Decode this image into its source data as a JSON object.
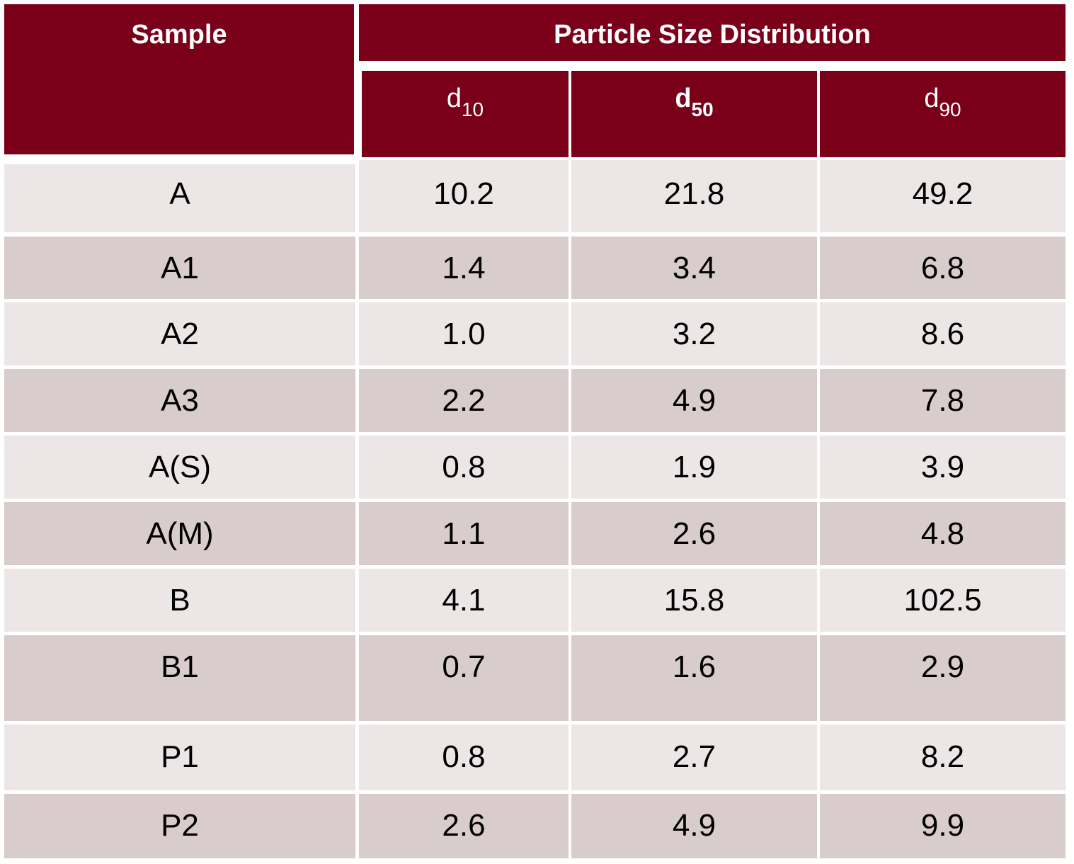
{
  "header": {
    "sample": "Sample",
    "group": "Particle Size Distribution",
    "columns": [
      {
        "main": "d",
        "sub": "10"
      },
      {
        "main": "d",
        "sub": "50"
      },
      {
        "main": "d",
        "sub": "90"
      }
    ]
  },
  "rows": [
    {
      "sample": "A",
      "d10": "10.2",
      "d50": "21.8",
      "d90": "49.2"
    },
    {
      "sample": "A1",
      "d10": "1.4",
      "d50": "3.4",
      "d90": "6.8"
    },
    {
      "sample": "A2",
      "d10": "1.0",
      "d50": "3.2",
      "d90": "8.6"
    },
    {
      "sample": "A3",
      "d10": "2.2",
      "d50": "4.9",
      "d90": "7.8"
    },
    {
      "sample": "A(S)",
      "d10": "0.8",
      "d50": "1.9",
      "d90": "3.9"
    },
    {
      "sample": "A(M)",
      "d10": "1.1",
      "d50": "2.6",
      "d90": "4.8"
    },
    {
      "sample": "B",
      "d10": "4.1",
      "d50": "15.8",
      "d90": "102.5"
    },
    {
      "sample": "B1",
      "d10": "0.7",
      "d50": "1.6",
      "d90": "2.9"
    },
    {
      "sample": "P1",
      "d10": "0.8",
      "d50": "2.7",
      "d90": "8.2"
    },
    {
      "sample": "P2",
      "d10": "2.6",
      "d50": "4.9",
      "d90": "9.9"
    }
  ],
  "colors": {
    "header_bg": "#7a0019",
    "row_light": "#ede6e6",
    "row_dark": "#d9cccc"
  }
}
